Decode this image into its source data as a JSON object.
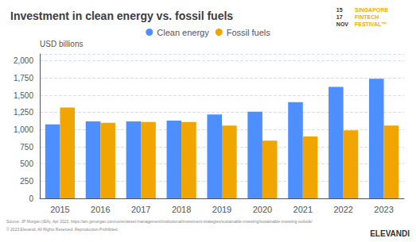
{
  "chart_data": {
    "type": "bar",
    "title": "Investment in clean energy vs. fossil fuels",
    "ylabel": "USD billions",
    "categories": [
      "2015",
      "2016",
      "2017",
      "2018",
      "2019",
      "2020",
      "2021",
      "2022",
      "2023"
    ],
    "series": [
      {
        "name": "Clean energy",
        "color": "#4d8fff",
        "values": [
          1075,
          1120,
          1120,
          1130,
          1220,
          1260,
          1400,
          1620,
          1740
        ]
      },
      {
        "name": "Fossil fuels",
        "color": "#f0a500",
        "values": [
          1320,
          1100,
          1110,
          1110,
          1060,
          840,
          900,
          990,
          1060
        ]
      }
    ],
    "ylim": [
      0,
      2100
    ],
    "yticks": [
      0,
      250,
      500,
      750,
      {
        "value": 1000,
        "label": "1,000"
      },
      {
        "value": 1250,
        "label": "1,250"
      },
      {
        "value": 1500,
        "label": "1,500"
      },
      {
        "value": 1750,
        "label": "1,750"
      },
      {
        "value": 2000,
        "label": "2,000"
      }
    ],
    "grid": true,
    "legend": "top",
    "annotations": [
      "15\n17\nNOV",
      "SINGAPORE\nFINTECH\nFESTIVAL™",
      "Source: JP Morgan (IEA), Apr 2023. https://am.jpmorgan.com/us/en/asset-management/institutional/investment-strategies/sustainable-investing/sustainable-investing-outlook/",
      "© 2023 Elevandi. All Rights Reserved. Reproduction Prohibited.",
      "ELEVANDI"
    ]
  }
}
